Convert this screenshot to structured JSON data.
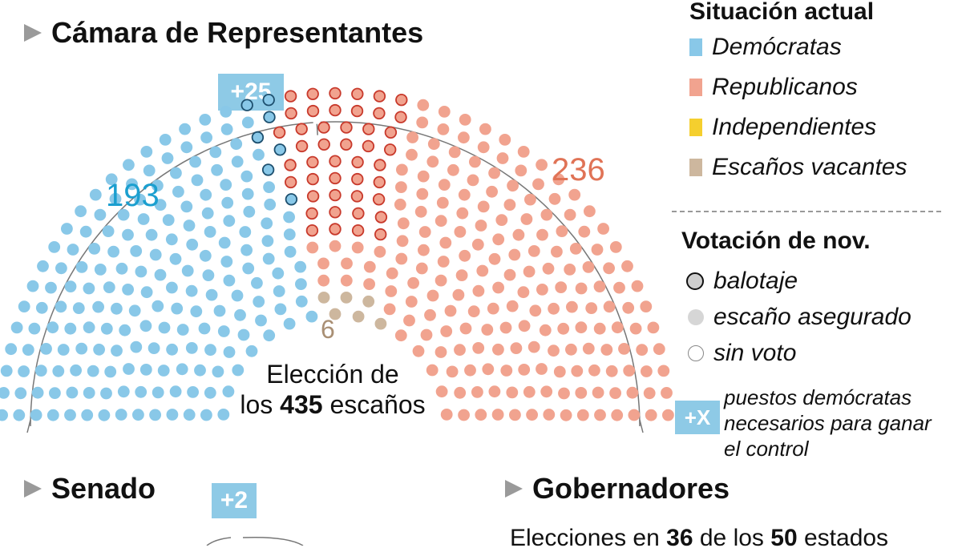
{
  "house": {
    "title": "Cámara de Representantes",
    "needed_badge": "+25",
    "dem_count": "193",
    "rep_count": "236",
    "vacant_count": "6",
    "caption_line1": "Elección de",
    "caption_pre": "los",
    "caption_number": "435",
    "caption_post": "escaños"
  },
  "legend": {
    "current_title": "Situación actual",
    "items": [
      {
        "label": "Demócratas",
        "color": "#89c8e8"
      },
      {
        "label": "Republicanos",
        "color": "#f1a38f"
      },
      {
        "label": "Independientes",
        "color": "#f5cf2e"
      },
      {
        "label": "Escaños vacantes",
        "color": "#cdb79e"
      }
    ],
    "vote_title": "Votación de nov.",
    "vote_items": [
      {
        "label": "balotaje",
        "icon": "outlined-circle-icon"
      },
      {
        "label": "escaño asegurado",
        "icon": "filled-grey-circle-icon"
      },
      {
        "label": "sin voto",
        "icon": "empty-circle-icon"
      }
    ],
    "needed_key_badge": "+X",
    "needed_key_text": [
      "puestos demócratas",
      "necesarios para ganar",
      "el control"
    ]
  },
  "senate": {
    "title": "Senado",
    "needed_badge": "+2"
  },
  "governors": {
    "title": "Gobernadores",
    "subtitle_pre": "Elecciones en",
    "n1": "36",
    "mid": "de los",
    "n2": "50",
    "post": "estados"
  },
  "chart_data": {
    "type": "parliament",
    "title": "Cámara de Representantes",
    "total_seats": 435,
    "series": [
      {
        "name": "Demócratas",
        "values": [
          193
        ],
        "color": "#89c8e8"
      },
      {
        "name": "Republicanos",
        "values": [
          236
        ],
        "color": "#f1a38f"
      },
      {
        "name": "Escaños vacantes",
        "values": [
          6
        ],
        "color": "#cdb79e"
      }
    ],
    "dem_needed": 25,
    "seats_at_stake_outlined": {
      "dem": 7,
      "rep": 45
    }
  }
}
